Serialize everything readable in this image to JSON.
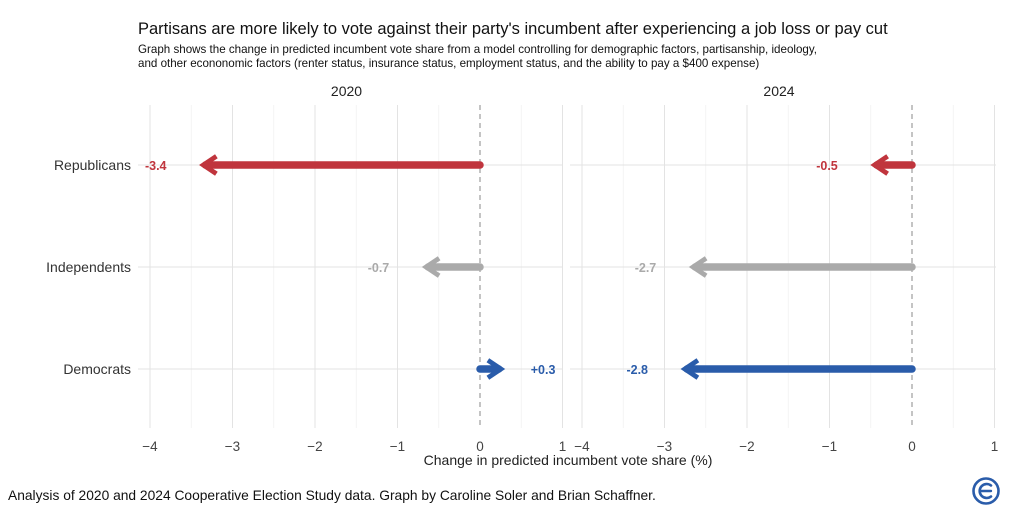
{
  "title": "Partisans are more likely to vote against their party's incumbent after experiencing a job loss or pay cut",
  "subtitle_lines": [
    "Graph shows the change in predicted incumbent vote share from a model controlling for demographic factors, partisanship, ideology,",
    "and other econonomic factors (renter status, insurance status, employment status, and the ability to pay a $400 expense)"
  ],
  "caption": "Analysis of 2020 and 2024 Cooperative Election Study data. Graph by Caroline Soler and Brian Schaffner.",
  "chart_data": {
    "type": "bar",
    "orientation": "horizontal-arrows",
    "facets": [
      "2020",
      "2024"
    ],
    "categories": [
      "Republicans",
      "Independents",
      "Democrats"
    ],
    "xlabel": "Change in predicted incumbent vote share (%)",
    "ylabel": "",
    "xlim": [
      -4,
      1
    ],
    "xticks": [
      -4,
      -3,
      -2,
      -1,
      0,
      1
    ],
    "xtick_labels": [
      "−4",
      "−3",
      "−2",
      "−1",
      "0",
      "1"
    ],
    "grid": true,
    "reference_line": 0,
    "colors": {
      "Republicans": "#c0353d",
      "Independents": "#aaaaaa",
      "Democrats": "#2a5caa"
    },
    "series": [
      {
        "facet": "2020",
        "values": [
          -3.4,
          -0.7,
          0.3
        ],
        "labels": [
          "-3.4",
          "-0.7",
          "+0.3"
        ]
      },
      {
        "facet": "2024",
        "values": [
          -0.5,
          -2.7,
          -2.8
        ],
        "labels": [
          "-0.5",
          "-2.7",
          "-2.8"
        ]
      }
    ]
  }
}
